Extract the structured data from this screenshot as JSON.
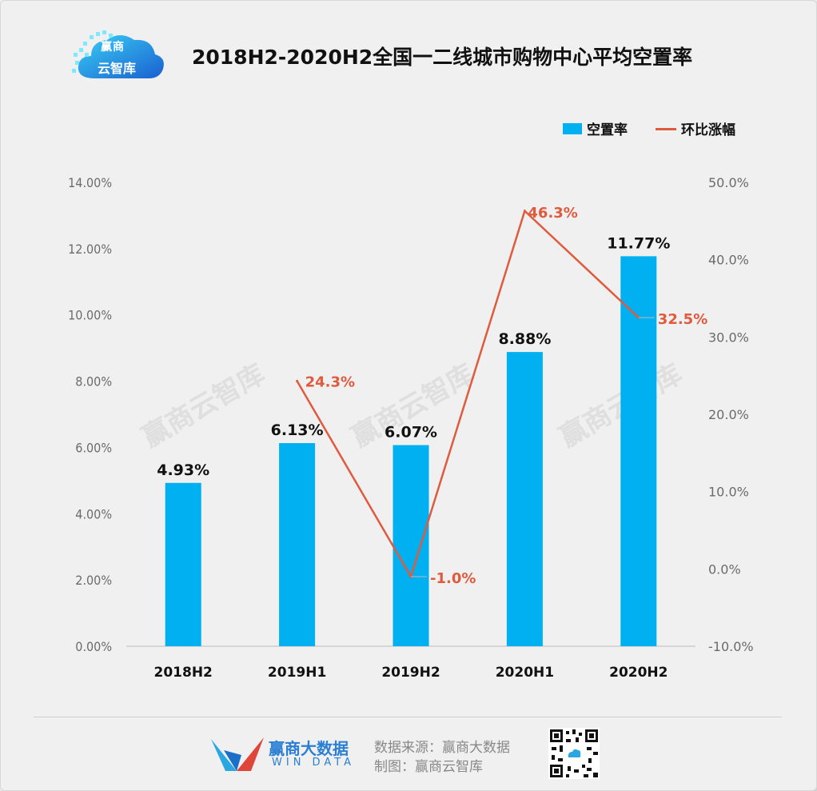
{
  "header": {
    "logo_line1": "赢商",
    "logo_line2": "云智库",
    "title": "2018H2-2020H2全国一二线城市购物中心平均空置率"
  },
  "legend": [
    {
      "label": "空置率",
      "kind": "bar",
      "color": "#00b0f0"
    },
    {
      "label": "环比涨幅",
      "kind": "line",
      "color": "#e05a3e"
    }
  ],
  "chart_data": {
    "type": "bar",
    "categories": [
      "2018H2",
      "2019H1",
      "2019H2",
      "2020H1",
      "2020H2"
    ],
    "series": [
      {
        "name": "空置率",
        "type": "bar",
        "axis": "left",
        "values": [
          4.93,
          6.13,
          6.07,
          8.88,
          11.77
        ],
        "labels": [
          "4.93%",
          "6.13%",
          "6.07%",
          "8.88%",
          "11.77%"
        ],
        "color": "#00b0f0"
      },
      {
        "name": "环比涨幅",
        "type": "line",
        "axis": "right",
        "values": [
          null,
          24.3,
          -1.0,
          46.3,
          32.5
        ],
        "labels": [
          "",
          "24.3%",
          "-1.0%",
          "46.3%",
          "32.5%"
        ],
        "color": "#e05a3e"
      }
    ],
    "y_left": {
      "min": 0,
      "max": 14,
      "step": 2,
      "ticks": [
        "0.00%",
        "2.00%",
        "4.00%",
        "6.00%",
        "8.00%",
        "10.00%",
        "12.00%",
        "14.00%"
      ]
    },
    "y_right": {
      "min": -10,
      "max": 50,
      "step": 10,
      "ticks": [
        "-10.0%",
        "0.0%",
        "10.0%",
        "20.0%",
        "30.0%",
        "40.0%",
        "50.0%"
      ]
    },
    "grid": false,
    "legend_position": "top-right"
  },
  "watermark": "赢商云智库",
  "footer": {
    "brand": "赢商大数据",
    "brand_en": "WIN DATA",
    "source": "数据来源：赢商大数据",
    "maker": "制图：赢商云智库"
  }
}
